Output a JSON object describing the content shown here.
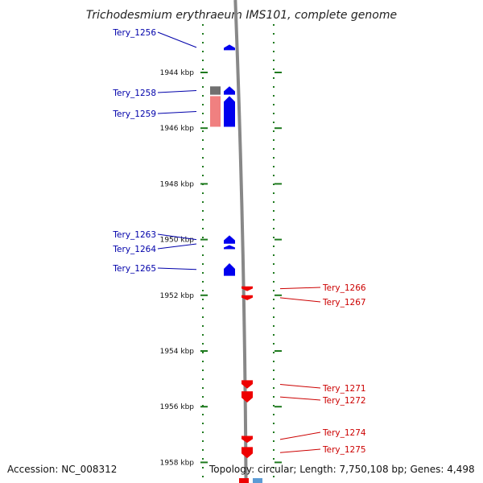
{
  "title": "Trichodesmium erythraeum IMS101, complete genome",
  "footer": {
    "accession": "Accession: NC_008312",
    "topology": "Topology: circular; Length: 7,750,108 bp; Genes: 4,498"
  },
  "colors": {
    "forward_gene": "#0000ee",
    "reverse_gene": "#ee0000",
    "label_forward": "#0000aa",
    "label_reverse": "#cc0000",
    "tick": "#1e7a1e",
    "backbone": "#888888",
    "grey_block": "#707070",
    "pink_block": "#f08080"
  },
  "chart_data": {
    "type": "genome-map",
    "axis_unit": "kbp",
    "axis_range": [
      1942.6,
      1958.7
    ],
    "ticks": [
      {
        "value": 1944,
        "label": "1944 kbp"
      },
      {
        "value": 1946,
        "label": "1946 kbp"
      },
      {
        "value": 1948,
        "label": "1948 kbp"
      },
      {
        "value": 1950,
        "label": "1950 kbp"
      },
      {
        "value": 1952,
        "label": "1952 kbp"
      },
      {
        "value": 1954,
        "label": "1954 kbp"
      },
      {
        "value": 1956,
        "label": "1956 kbp"
      },
      {
        "value": 1958,
        "label": "1958 kbp"
      }
    ],
    "forward_genes": [
      {
        "name": "Tery_1256",
        "start": 1943.0,
        "end": 1943.2
      },
      {
        "name": "Tery_1258",
        "start": 1944.5,
        "end": 1944.8
      },
      {
        "name": "Tery_1259",
        "start": 1944.85,
        "end": 1945.95
      },
      {
        "name": "Tery_1263",
        "start": 1949.85,
        "end": 1950.15
      },
      {
        "name": "Tery_1264",
        "start": 1950.2,
        "end": 1950.3
      },
      {
        "name": "Tery_1265",
        "start": 1950.85,
        "end": 1951.3
      }
    ],
    "reverse_genes": [
      {
        "name": "Tery_1266",
        "start": 1951.68,
        "end": 1951.85
      },
      {
        "name": "Tery_1267",
        "start": 1952.0,
        "end": 1952.18
      },
      {
        "name": "Tery_1271",
        "start": 1955.05,
        "end": 1955.35
      },
      {
        "name": "Tery_1272",
        "start": 1955.45,
        "end": 1955.85
      },
      {
        "name": "Tery_1274",
        "start": 1957.05,
        "end": 1957.3
      },
      {
        "name": "Tery_1275",
        "start": 1957.45,
        "end": 1957.85
      }
    ],
    "other_features": [
      {
        "kind": "grey",
        "start": 1944.5,
        "end": 1944.8
      },
      {
        "kind": "pink",
        "start": 1944.85,
        "end": 1945.95
      }
    ]
  }
}
